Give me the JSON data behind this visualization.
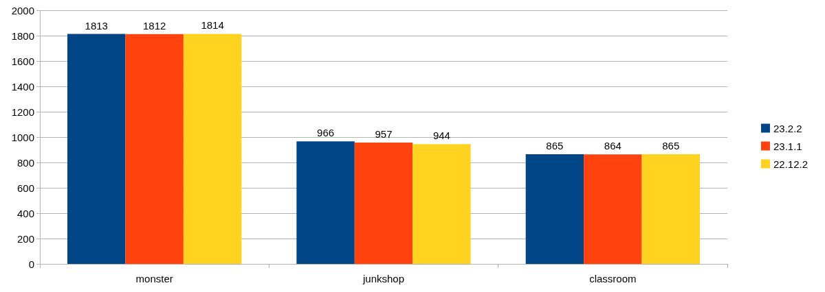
{
  "chart_data": {
    "type": "bar",
    "categories": [
      "monster",
      "junkshop",
      "classroom"
    ],
    "series": [
      {
        "name": "23.2.2",
        "color": "#004586",
        "values": [
          1813,
          966,
          865
        ]
      },
      {
        "name": "23.1.1",
        "color": "#ff420e",
        "values": [
          1812,
          957,
          864
        ]
      },
      {
        "name": "22.12.2",
        "color": "#ffd320",
        "values": [
          1814,
          944,
          865
        ]
      }
    ],
    "ylim": [
      0,
      2000
    ],
    "yticks": [
      0,
      200,
      400,
      600,
      800,
      1000,
      1200,
      1400,
      1600,
      1800,
      2000
    ],
    "grid": "y",
    "legend": "right",
    "data_labels": true
  }
}
